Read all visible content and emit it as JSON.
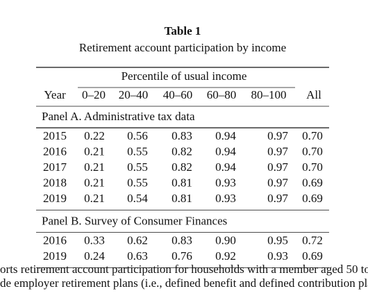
{
  "table": {
    "title": "Table 1",
    "caption": "Retirement account participation by income",
    "spanner": "Percentile of usual income",
    "columns": [
      "Year",
      "0–20",
      "20–40",
      "40–60",
      "60–80",
      "80–100",
      "All"
    ],
    "panels": [
      {
        "label": "Panel A. Administrative tax data",
        "rows": [
          [
            "2015",
            "0.22",
            "0.56",
            "0.83",
            "0.94",
            "0.97",
            "0.70"
          ],
          [
            "2016",
            "0.21",
            "0.55",
            "0.82",
            "0.94",
            "0.97",
            "0.70"
          ],
          [
            "2017",
            "0.21",
            "0.55",
            "0.82",
            "0.94",
            "0.97",
            "0.70"
          ],
          [
            "2018",
            "0.21",
            "0.55",
            "0.81",
            "0.93",
            "0.97",
            "0.69"
          ],
          [
            "2019",
            "0.21",
            "0.54",
            "0.81",
            "0.93",
            "0.97",
            "0.69"
          ]
        ]
      },
      {
        "label": "Panel B. Survey of Consumer Finances",
        "rows": [
          [
            "2016",
            "0.33",
            "0.62",
            "0.83",
            "0.90",
            "0.95",
            "0.72"
          ],
          [
            "2019",
            "0.24",
            "0.63",
            "0.76",
            "0.92",
            "0.93",
            "0.69"
          ]
        ]
      }
    ]
  },
  "footnote": [
    "orts retirement account participation for households with a member aged 50 to 5",
    "de employer retirement plans (i.e., defined benefit and defined contribution pla"
  ]
}
